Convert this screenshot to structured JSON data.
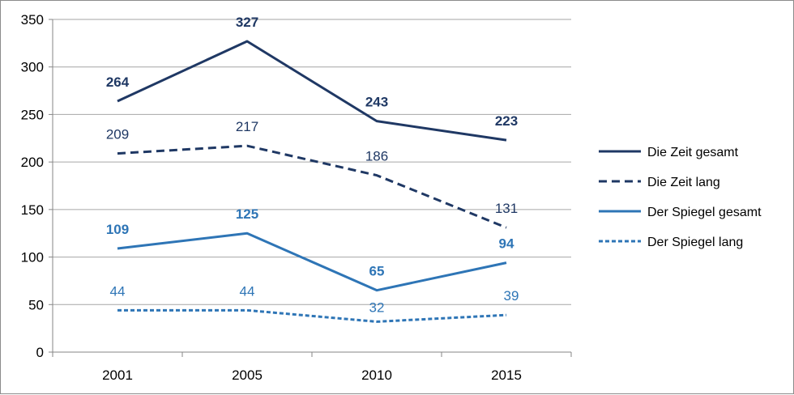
{
  "chart_data": {
    "type": "line",
    "title": "",
    "xlabel": "",
    "ylabel": "",
    "categories": [
      "2001",
      "2005",
      "2010",
      "2015"
    ],
    "ylim": [
      0,
      350
    ],
    "yticks": [
      0,
      50,
      100,
      150,
      200,
      250,
      300,
      350
    ],
    "grid": true,
    "legend_position": "right",
    "series": [
      {
        "name": "Die Zeit gesamt",
        "values": [
          264,
          327,
          243,
          223
        ],
        "color": "#1f3864",
        "dash": "solid",
        "label_bold": true
      },
      {
        "name": "Die Zeit lang",
        "values": [
          209,
          217,
          186,
          131
        ],
        "color": "#1f3864",
        "dash": "dashed",
        "label_bold": false
      },
      {
        "name": "Der Spiegel gesamt",
        "values": [
          109,
          125,
          65,
          94
        ],
        "color": "#2e75b6",
        "dash": "solid",
        "label_bold": true
      },
      {
        "name": "Der Spiegel lang",
        "values": [
          44,
          44,
          32,
          39
        ],
        "color": "#2e75b6",
        "dash": "dotted",
        "label_bold": false
      }
    ]
  }
}
